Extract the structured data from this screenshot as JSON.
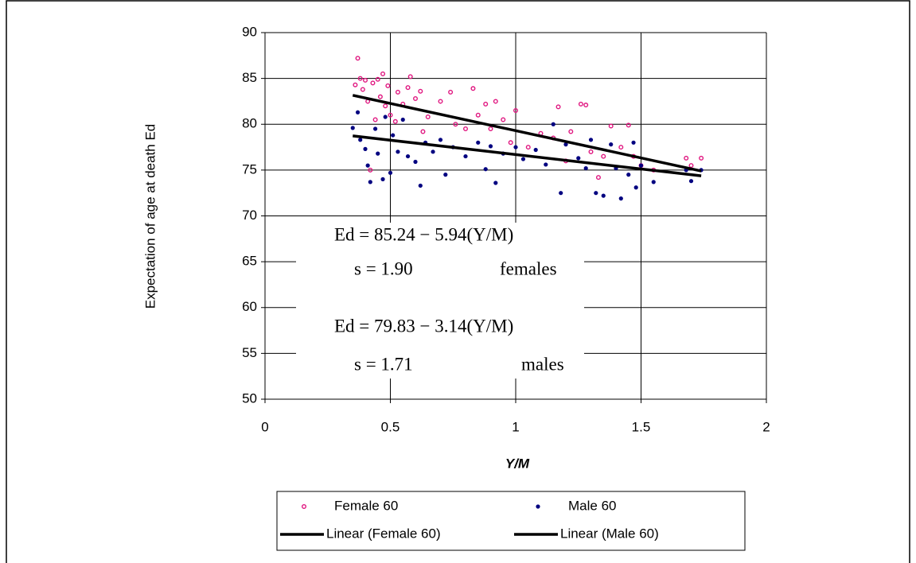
{
  "chart_data": {
    "type": "scatter",
    "x_label": "Y/M",
    "y_label": "Expectation of age at death Ed",
    "xlim": [
      0,
      2
    ],
    "xticks": [
      0,
      0.5,
      1,
      1.5,
      2
    ],
    "ylim": [
      50,
      90
    ],
    "yticks": [
      50,
      55,
      60,
      65,
      70,
      75,
      80,
      85,
      90
    ],
    "grid": true,
    "annotations": [
      "Ed = 85.24 − 5.94(Y/M)",
      "s = 1.90",
      "females",
      "Ed = 79.83 − 3.14(Y/M)",
      "s = 1.71",
      "males"
    ],
    "series": [
      {
        "name": "Female 60",
        "color": "#e0157f",
        "marker": "open-circle",
        "x": [
          0.36,
          0.37,
          0.38,
          0.39,
          0.4,
          0.41,
          0.42,
          0.43,
          0.44,
          0.45,
          0.46,
          0.47,
          0.48,
          0.49,
          0.5,
          0.52,
          0.53,
          0.55,
          0.57,
          0.58,
          0.6,
          0.62,
          0.63,
          0.65,
          0.7,
          0.74,
          0.76,
          0.8,
          0.83,
          0.85,
          0.88,
          0.9,
          0.92,
          0.95,
          0.98,
          1.0,
          1.05,
          1.1,
          1.15,
          1.17,
          1.2,
          1.22,
          1.26,
          1.28,
          1.3,
          1.33,
          1.35,
          1.38,
          1.42,
          1.45,
          1.47,
          1.5,
          1.55,
          1.68,
          1.7,
          1.74
        ],
        "values": [
          84.3,
          87.2,
          85,
          83.8,
          84.8,
          82.5,
          75,
          84.5,
          80.5,
          84.9,
          83,
          85.5,
          82,
          84.2,
          81,
          80.3,
          83.5,
          82.2,
          84,
          85.2,
          82.8,
          83.6,
          79.2,
          80.8,
          82.5,
          83.5,
          80,
          79.5,
          83.9,
          81,
          82.2,
          79.5,
          82.5,
          80.5,
          78,
          81.5,
          77.5,
          79,
          78.5,
          81.9,
          76,
          79.2,
          82.2,
          82.1,
          77,
          74.2,
          76.5,
          79.8,
          77.5,
          79.9,
          76.5,
          75.5,
          75,
          76.3,
          75.5,
          76.3
        ]
      },
      {
        "name": "Male 60",
        "color": "#000080",
        "marker": "dot",
        "x": [
          0.35,
          0.37,
          0.38,
          0.4,
          0.41,
          0.42,
          0.44,
          0.45,
          0.47,
          0.48,
          0.5,
          0.51,
          0.53,
          0.55,
          0.57,
          0.6,
          0.62,
          0.64,
          0.67,
          0.7,
          0.72,
          0.75,
          0.8,
          0.85,
          0.88,
          0.9,
          0.92,
          0.95,
          1.0,
          1.03,
          1.08,
          1.12,
          1.15,
          1.18,
          1.2,
          1.25,
          1.28,
          1.3,
          1.32,
          1.35,
          1.38,
          1.4,
          1.42,
          1.45,
          1.47,
          1.48,
          1.5,
          1.55,
          1.68,
          1.7,
          1.74
        ],
        "values": [
          79.6,
          81.3,
          78.3,
          77.3,
          75.5,
          73.7,
          79.5,
          76.8,
          74,
          80.8,
          74.7,
          78.8,
          77,
          80.5,
          76.5,
          75.9,
          73.3,
          78,
          77,
          78.3,
          74.5,
          77.5,
          76.5,
          78,
          75.1,
          77.6,
          73.6,
          76.8,
          77.5,
          76.2,
          77.2,
          75.6,
          80,
          72.5,
          77.8,
          76.3,
          75.2,
          78.3,
          72.5,
          72.2,
          77.8,
          75.2,
          71.9,
          74.5,
          78,
          73.1,
          75.5,
          73.7,
          75,
          73.8,
          75
        ]
      },
      {
        "name": "Linear (Female 60)",
        "color": "#000000",
        "marker": "line",
        "x": [
          0.35,
          1.74
        ],
        "values": [
          83.16,
          74.9
        ]
      },
      {
        "name": "Linear (Male 60)",
        "color": "#000000",
        "marker": "line",
        "x": [
          0.35,
          1.74
        ],
        "values": [
          78.73,
          74.37
        ]
      }
    ]
  }
}
